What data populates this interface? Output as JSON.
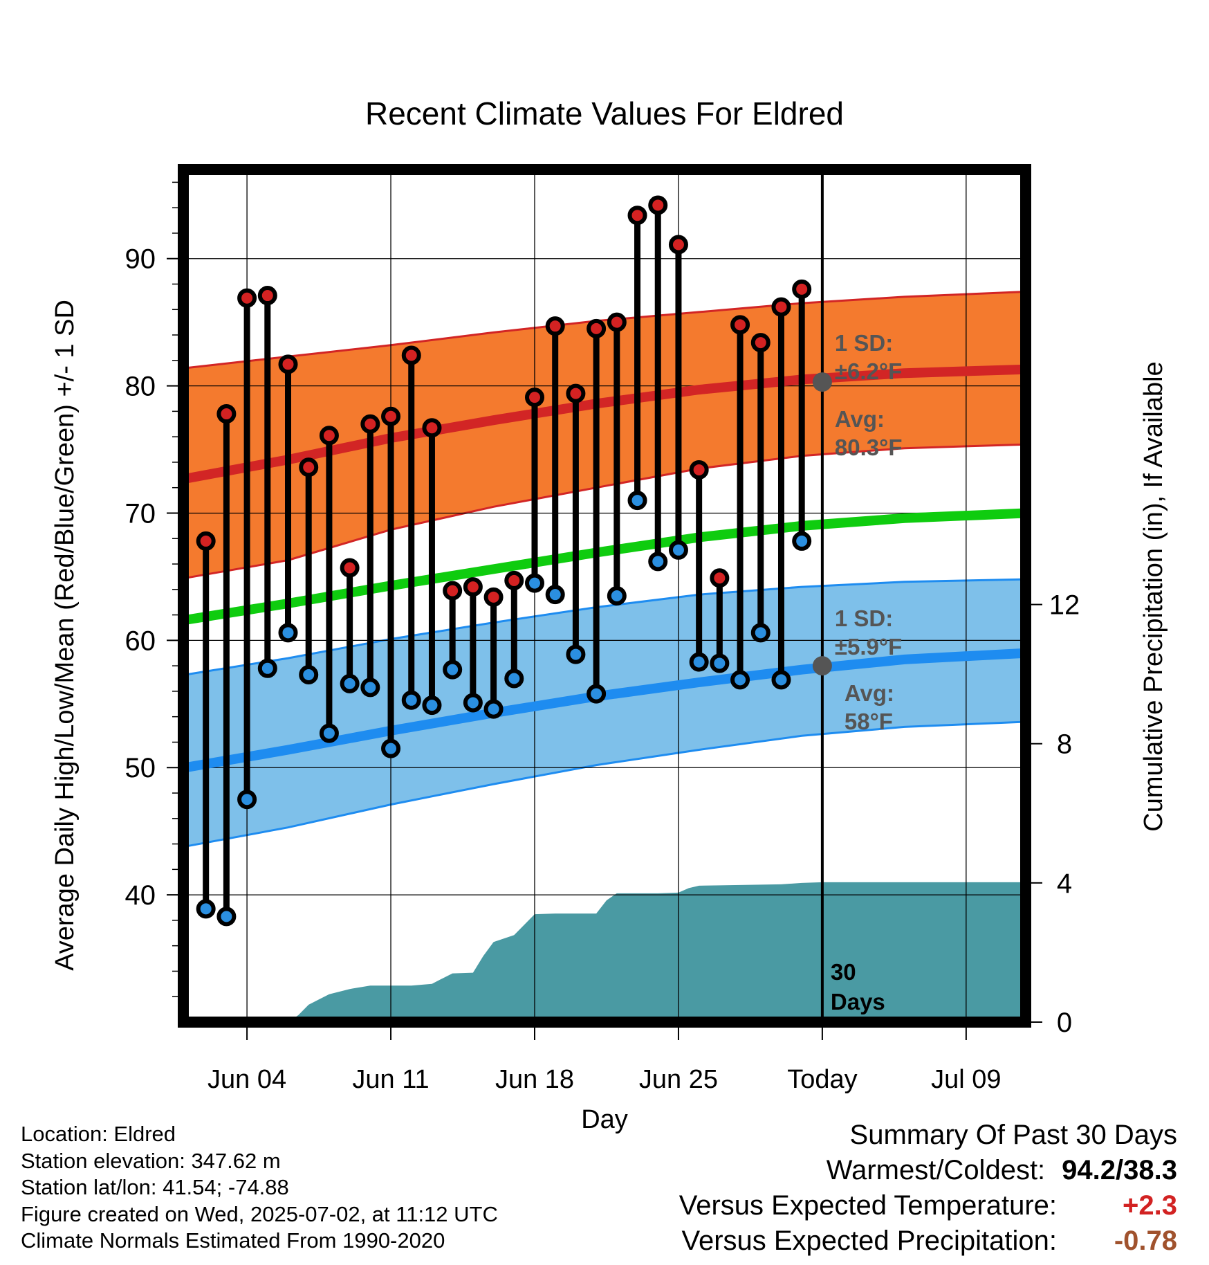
{
  "chart_data": {
    "type": "line",
    "title": "Recent Climate Values For Eldred",
    "xlabel": "Day",
    "ylabel": "Average Daily High/Low/Mean (Red/Blue/Green) +/- 1 SD",
    "ylabel_right": "Cumulative Precipitation (in), If Available",
    "x_ticks": [
      "Jun 04",
      "Jun 11",
      "Jun 18",
      "Jun 25",
      "Today",
      "Jul 09"
    ],
    "x_tick_days": [
      4,
      11,
      18,
      25,
      32,
      39
    ],
    "xlim": [
      0.9,
      41.9
    ],
    "ylim": [
      30,
      97
    ],
    "y_ticks": [
      40,
      50,
      60,
      70,
      80,
      90
    ],
    "ylim_right": [
      0,
      24.5
    ],
    "y_ticks_right": [
      0,
      4,
      8,
      12
    ],
    "grid": true,
    "today_label": "30\nDays",
    "today_day": 32,
    "daily": {
      "day": [
        2,
        3,
        4,
        5,
        6,
        7,
        8,
        9,
        10,
        11,
        12,
        13,
        14,
        15,
        16,
        17,
        18,
        19,
        20,
        21,
        22,
        23,
        24,
        25,
        26,
        27,
        28,
        29,
        30,
        31
      ],
      "high": [
        67.8,
        77.8,
        86.9,
        87.1,
        81.7,
        73.6,
        76.1,
        65.7,
        77.0,
        77.6,
        82.4,
        76.7,
        63.9,
        64.2,
        63.4,
        64.7,
        79.1,
        84.7,
        79.4,
        84.5,
        85.0,
        93.4,
        94.2,
        91.1,
        73.4,
        64.9,
        84.8,
        83.4,
        86.2,
        87.6
      ],
      "low": [
        38.9,
        38.3,
        47.5,
        57.8,
        60.6,
        57.3,
        52.7,
        56.6,
        56.3,
        51.5,
        55.3,
        54.9,
        57.7,
        55.1,
        54.6,
        57.0,
        64.5,
        63.6,
        58.9,
        55.8,
        63.5,
        71.0,
        66.2,
        67.1,
        58.3,
        58.2,
        56.9,
        60.6,
        56.9,
        67.8
      ]
    },
    "normals": {
      "day": [
        1,
        6,
        11,
        16,
        21,
        26,
        31,
        36,
        41.9
      ],
      "high_mean": [
        72.7,
        74.2,
        75.9,
        77.3,
        78.6,
        79.7,
        80.5,
        81.0,
        81.3
      ],
      "high_sd_upper": [
        81.4,
        82.3,
        83.2,
        84.2,
        85.1,
        85.8,
        86.5,
        87.0,
        87.4
      ],
      "high_sd_lower": [
        64.9,
        66.3,
        68.7,
        70.5,
        72.0,
        73.5,
        74.5,
        75.1,
        75.4
      ],
      "mean": [
        61.6,
        62.9,
        64.3,
        65.6,
        66.9,
        68.1,
        69.0,
        69.6,
        70.0
      ],
      "low_mean": [
        50.0,
        51.4,
        52.9,
        54.3,
        55.6,
        56.7,
        57.7,
        58.5,
        59.0
      ],
      "low_sd_upper": [
        57.3,
        58.6,
        60.1,
        61.4,
        62.6,
        63.6,
        64.2,
        64.6,
        64.8
      ],
      "low_sd_lower": [
        43.8,
        45.3,
        47.1,
        48.7,
        50.2,
        51.4,
        52.5,
        53.2,
        53.6
      ]
    },
    "precip": {
      "day": [
        1,
        6,
        6.5,
        7,
        7.5,
        8,
        9,
        10,
        11,
        12,
        13,
        13.5,
        14,
        15,
        15.5,
        16,
        17,
        17.5,
        18,
        19,
        20,
        21,
        21.5,
        22,
        23,
        24,
        25,
        25.5,
        26,
        27,
        28,
        29,
        30,
        31,
        32,
        33,
        34,
        35,
        36,
        37,
        38,
        39,
        40,
        41,
        41.9
      ],
      "total": [
        0,
        0,
        0.2,
        0.5,
        0.65,
        0.8,
        0.95,
        1.05,
        1.05,
        1.05,
        1.1,
        1.25,
        1.4,
        1.42,
        1.9,
        2.3,
        2.5,
        2.8,
        3.1,
        3.12,
        3.12,
        3.12,
        3.5,
        3.7,
        3.7,
        3.7,
        3.72,
        3.85,
        3.92,
        3.93,
        3.94,
        3.95,
        3.96,
        4.0,
        4.02,
        4.02,
        4.02,
        4.02,
        4.02,
        4.02,
        4.02,
        4.02,
        4.02,
        4.02,
        4.02
      ]
    },
    "annotations": {
      "high_sd": "1 SD:",
      "high_sd_value": "±6.2°F",
      "high_avg": "Avg:",
      "high_avg_value": "80.3°F",
      "low_sd": "1 SD:",
      "low_sd_value": "±5.9°F",
      "low_avg": "Avg:",
      "low_avg_value": "58°F",
      "high_avg_today": 80.3,
      "low_avg_today": 58.0
    },
    "colors": {
      "high_band": "#f47a2e",
      "high_line": "#d22525",
      "low_band": "#7ec0ea",
      "low_line": "#1e8cf0",
      "mean_line": "#0fcc0f",
      "precip": "#4a9aa3",
      "high_dot": "#d42222",
      "low_dot": "#2b8fe0",
      "annotation": "#555555"
    }
  },
  "footer": {
    "location": "Location: Eldred",
    "elevation": "Station elevation: 347.62 m",
    "latlon": "Station lat/lon: 41.54; -74.88",
    "created": "Figure created on Wed, 2025-07-02, at 11:12 UTC",
    "normals": "Climate Normals Estimated From 1990-2020"
  },
  "summary": {
    "title": "Summary Of Past 30 Days",
    "warm_cold_label": "Warmest/Coldest:",
    "warm_cold_value": "94.2/38.3",
    "temp_label": "Versus Expected Temperature:",
    "temp_value": "+2.3",
    "temp_color": "#d22222",
    "precip_label": "Versus Expected Precipitation:",
    "precip_value": "-0.78",
    "precip_color": "#a0522d"
  }
}
